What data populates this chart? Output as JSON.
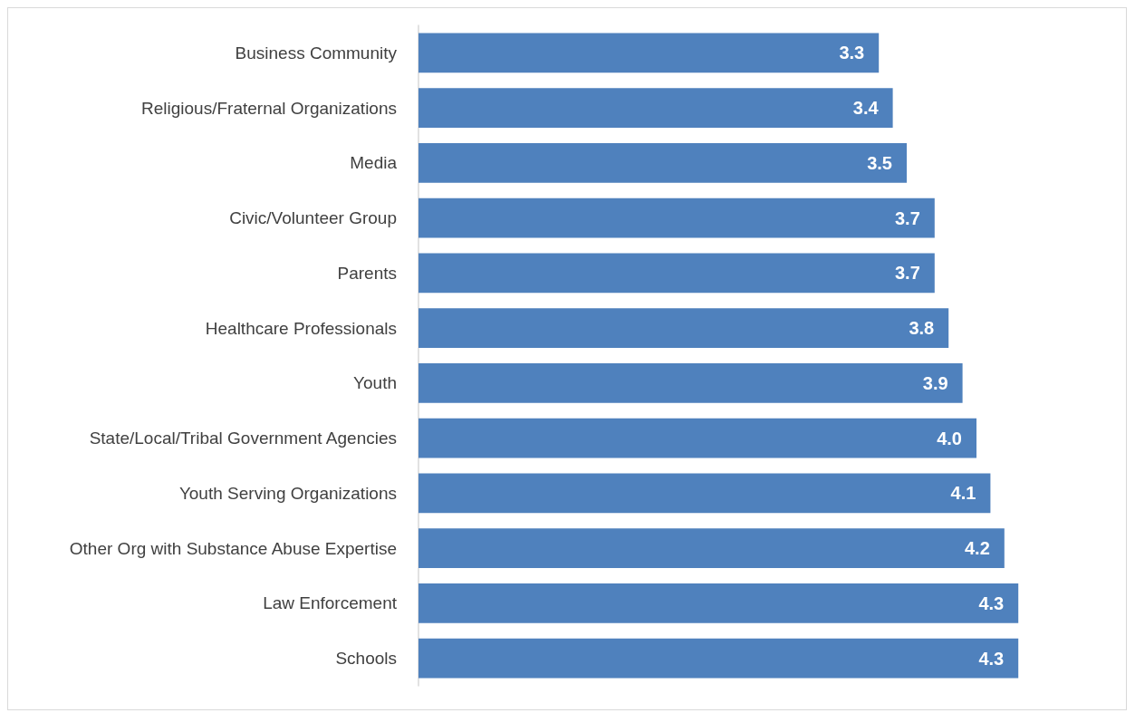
{
  "chart_data": {
    "type": "bar",
    "orientation": "horizontal",
    "categories": [
      "Business Community",
      "Religious/Fraternal Organizations",
      "Media",
      "Civic/Volunteer Group",
      "Parents",
      "Healthcare Professionals",
      "Youth",
      "State/Local/Tribal Government Agencies",
      "Youth Serving Organizations",
      "Other Org with Substance Abuse Expertise",
      "Law Enforcement",
      "Schools"
    ],
    "values": [
      3.3,
      3.4,
      3.5,
      3.7,
      3.7,
      3.8,
      3.9,
      4.0,
      4.1,
      4.2,
      4.3,
      4.3
    ],
    "value_labels": [
      "3.3",
      "3.4",
      "3.5",
      "3.7",
      "3.7",
      "3.8",
      "3.9",
      "4.0",
      "4.1",
      "4.2",
      "4.3",
      "4.3"
    ],
    "color": "#4f81bd",
    "tick_labels": "y"
  }
}
